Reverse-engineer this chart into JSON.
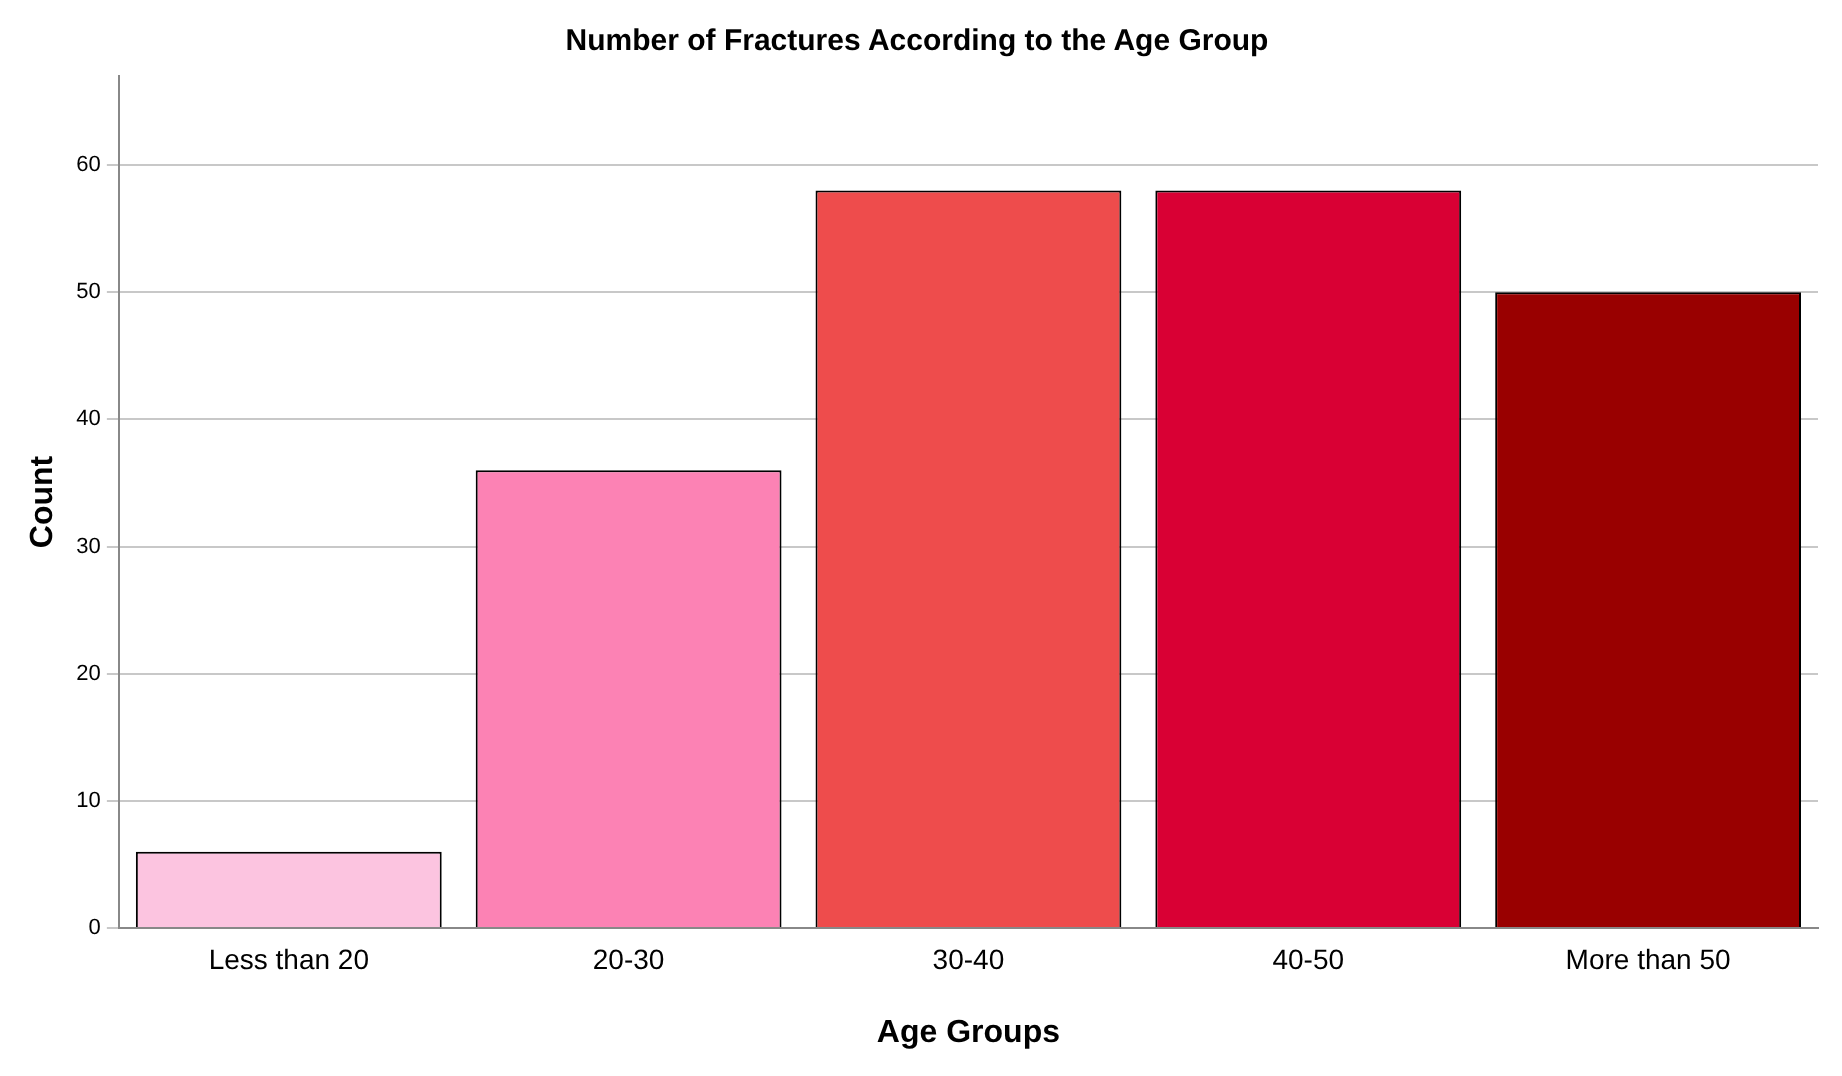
{
  "chart_data": {
    "type": "bar",
    "title": "Number of Fractures According to the Age Group",
    "xlabel": "Age Groups",
    "ylabel": "Count",
    "categories": [
      "Less than 20",
      "20-30",
      "30-40",
      "40-50",
      "More than 50"
    ],
    "values": [
      6,
      36,
      58,
      58,
      50
    ],
    "colors": [
      "#fcc4e0",
      "#fc82b4",
      "#ee4c4c",
      "#d90034",
      "#990000"
    ],
    "ylim": [
      0,
      67
    ],
    "yticks": [
      0,
      10,
      20,
      30,
      40,
      50,
      60
    ],
    "grid": "y",
    "legend": false
  }
}
